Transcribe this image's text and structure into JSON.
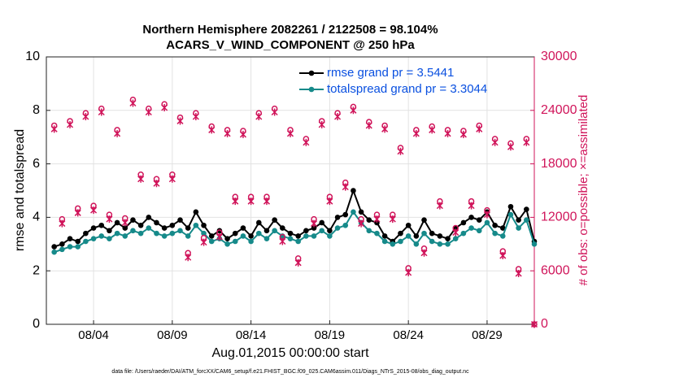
{
  "chart_data": {
    "type": "line",
    "title": "Northern Hemisphere 2082261 / 2122508 = 98.104%",
    "subtitle": "ACARS_V_WIND_COMPONENT @ 250 hPa",
    "xlabel": "Aug.01,2015 00:00:00 start",
    "ylabel": "rmse and totalspread",
    "y2label": "# of obs: o=possible; ×=assimilated",
    "footnote": "data file: /Users/raeder/DAI/ATM_forcXX/CAM6_setup/f.e21.FHIST_BGC.f09_025.CAM6assim.011/Diags_NTrS_2015-08/obs_diag_output.nc",
    "xlim": [
      0,
      31
    ],
    "xticks": [
      {
        "value": 3,
        "label": "08/04"
      },
      {
        "value": 8,
        "label": "08/09"
      },
      {
        "value": 13,
        "label": "08/14"
      },
      {
        "value": 18,
        "label": "08/19"
      },
      {
        "value": 23,
        "label": "08/24"
      },
      {
        "value": 28,
        "label": "08/29"
      }
    ],
    "ylim": [
      0,
      10
    ],
    "yticks": [
      0,
      2,
      4,
      6,
      8,
      10
    ],
    "y2lim": [
      0,
      30000
    ],
    "y2ticks": [
      0,
      6000,
      12000,
      18000,
      24000,
      30000
    ],
    "grid": true,
    "legend": "upper right",
    "x": [
      0.5,
      1,
      1.5,
      2,
      2.5,
      3,
      3.5,
      4,
      4.5,
      5,
      5.5,
      6,
      6.5,
      7,
      7.5,
      8,
      8.5,
      9,
      9.5,
      10,
      10.5,
      11,
      11.5,
      12,
      12.5,
      13,
      13.5,
      14,
      14.5,
      15,
      15.5,
      16,
      16.5,
      17,
      17.5,
      18,
      18.5,
      19,
      19.5,
      20,
      20.5,
      21,
      21.5,
      22,
      22.5,
      23,
      23.5,
      24,
      24.5,
      25,
      25.5,
      26,
      26.5,
      27,
      27.5,
      28,
      28.5,
      29,
      29.5,
      30,
      30.5,
      31
    ],
    "series": [
      {
        "name": "rmse grand pr = 3.5441",
        "color": "#000000",
        "values": [
          2.9,
          3.0,
          3.2,
          3.1,
          3.4,
          3.6,
          3.7,
          3.5,
          3.8,
          3.6,
          3.9,
          3.7,
          4.0,
          3.8,
          3.6,
          3.7,
          3.9,
          3.6,
          4.2,
          3.7,
          3.3,
          3.5,
          3.2,
          3.4,
          3.6,
          3.3,
          3.8,
          3.5,
          3.9,
          3.6,
          3.4,
          3.3,
          3.5,
          3.6,
          3.8,
          3.5,
          4.0,
          4.1,
          5.0,
          4.2,
          3.9,
          3.8,
          3.3,
          3.1,
          3.4,
          3.7,
          3.3,
          3.9,
          3.4,
          3.3,
          3.2,
          3.6,
          3.8,
          4.0,
          3.9,
          4.2,
          3.7,
          3.6,
          4.4,
          3.9,
          4.3,
          3.1
        ]
      },
      {
        "name": "totalspread grand pr = 3.3044",
        "color": "#168a8a",
        "values": [
          2.7,
          2.8,
          2.9,
          2.9,
          3.1,
          3.2,
          3.3,
          3.2,
          3.4,
          3.3,
          3.5,
          3.4,
          3.6,
          3.4,
          3.3,
          3.4,
          3.5,
          3.3,
          3.7,
          3.4,
          3.1,
          3.2,
          3.0,
          3.1,
          3.3,
          3.1,
          3.4,
          3.2,
          3.5,
          3.3,
          3.2,
          3.1,
          3.3,
          3.3,
          3.5,
          3.3,
          3.6,
          3.7,
          4.2,
          3.8,
          3.5,
          3.4,
          3.1,
          3.0,
          3.1,
          3.3,
          3.0,
          3.4,
          3.1,
          3.0,
          3.0,
          3.2,
          3.4,
          3.6,
          3.5,
          3.8,
          3.4,
          3.3,
          4.1,
          3.6,
          3.9,
          3.0
        ]
      },
      {
        "name": "possible",
        "color": "#d0145a",
        "axis": "y2",
        "marker": "o",
        "values": [
          22300,
          11800,
          22800,
          13000,
          23700,
          13300,
          24200,
          12300,
          21800,
          11900,
          25200,
          16800,
          24200,
          16300,
          24700,
          16800,
          23200,
          8000,
          23700,
          9700,
          22200,
          10300,
          21800,
          14300,
          21700,
          14300,
          23700,
          14300,
          24200,
          9800,
          21800,
          7400,
          20800,
          11800,
          22800,
          14300,
          23700,
          15900,
          24400,
          11800,
          22700,
          12300,
          22300,
          12300,
          19800,
          6300,
          21800,
          8500,
          22200,
          13800,
          21800,
          10800,
          21700,
          13800,
          22300,
          12800,
          20800,
          8200,
          20300,
          6200,
          20800,
          0
        ]
      },
      {
        "name": "assimilated",
        "color": "#d0145a",
        "axis": "y2",
        "marker": "x",
        "values": [
          21900,
          11300,
          22400,
          12500,
          23300,
          12800,
          23800,
          11800,
          21400,
          11400,
          24800,
          16300,
          23800,
          15800,
          24300,
          16300,
          22800,
          7500,
          23300,
          9200,
          21800,
          9800,
          21400,
          13800,
          21300,
          13800,
          23300,
          13800,
          23800,
          9300,
          21400,
          6900,
          20400,
          11300,
          22400,
          13800,
          23300,
          15400,
          24000,
          11300,
          22300,
          11800,
          21900,
          11800,
          19400,
          5800,
          21400,
          8000,
          21800,
          13300,
          21400,
          10300,
          21300,
          13300,
          21900,
          12300,
          20400,
          7700,
          19900,
          5700,
          20400,
          0
        ]
      }
    ]
  }
}
